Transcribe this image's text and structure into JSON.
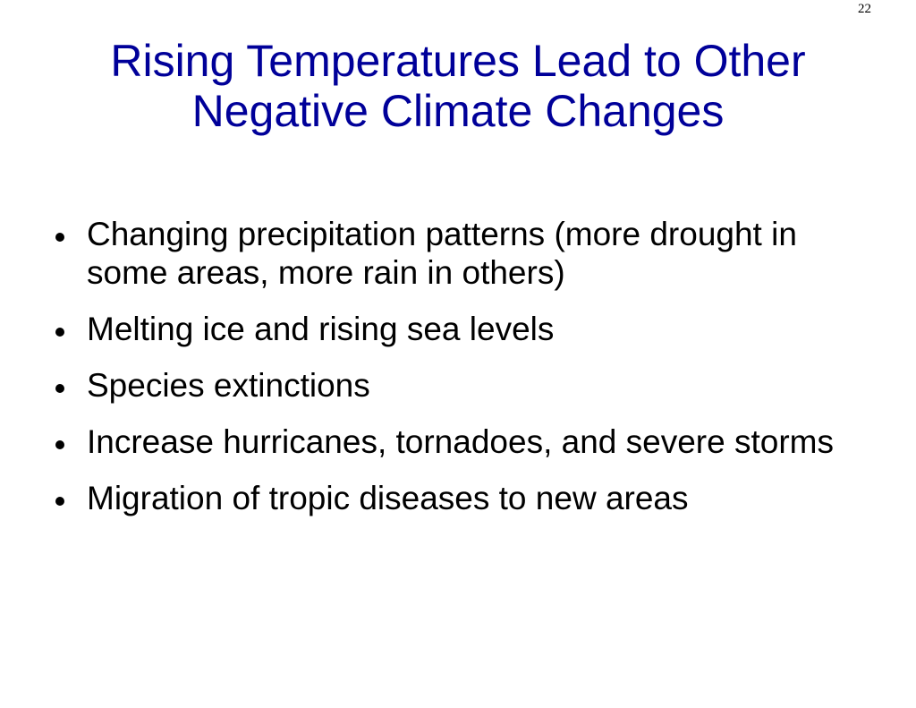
{
  "slide": {
    "page_number": "22",
    "title_lines": [
      "Rising Temperatures Lead to Other",
      "Negative Climate Changes"
    ],
    "bullets": [
      "Changing precipitation patterns (more drought in some areas, more rain in others)",
      "Melting ice and rising sea levels",
      "Species extinctions",
      "Increase hurricanes, tornadoes, and severe storms",
      "Migration of tropic diseases to new areas"
    ],
    "colors": {
      "title": "#000099",
      "text": "#000000",
      "background": "#ffffff"
    }
  }
}
